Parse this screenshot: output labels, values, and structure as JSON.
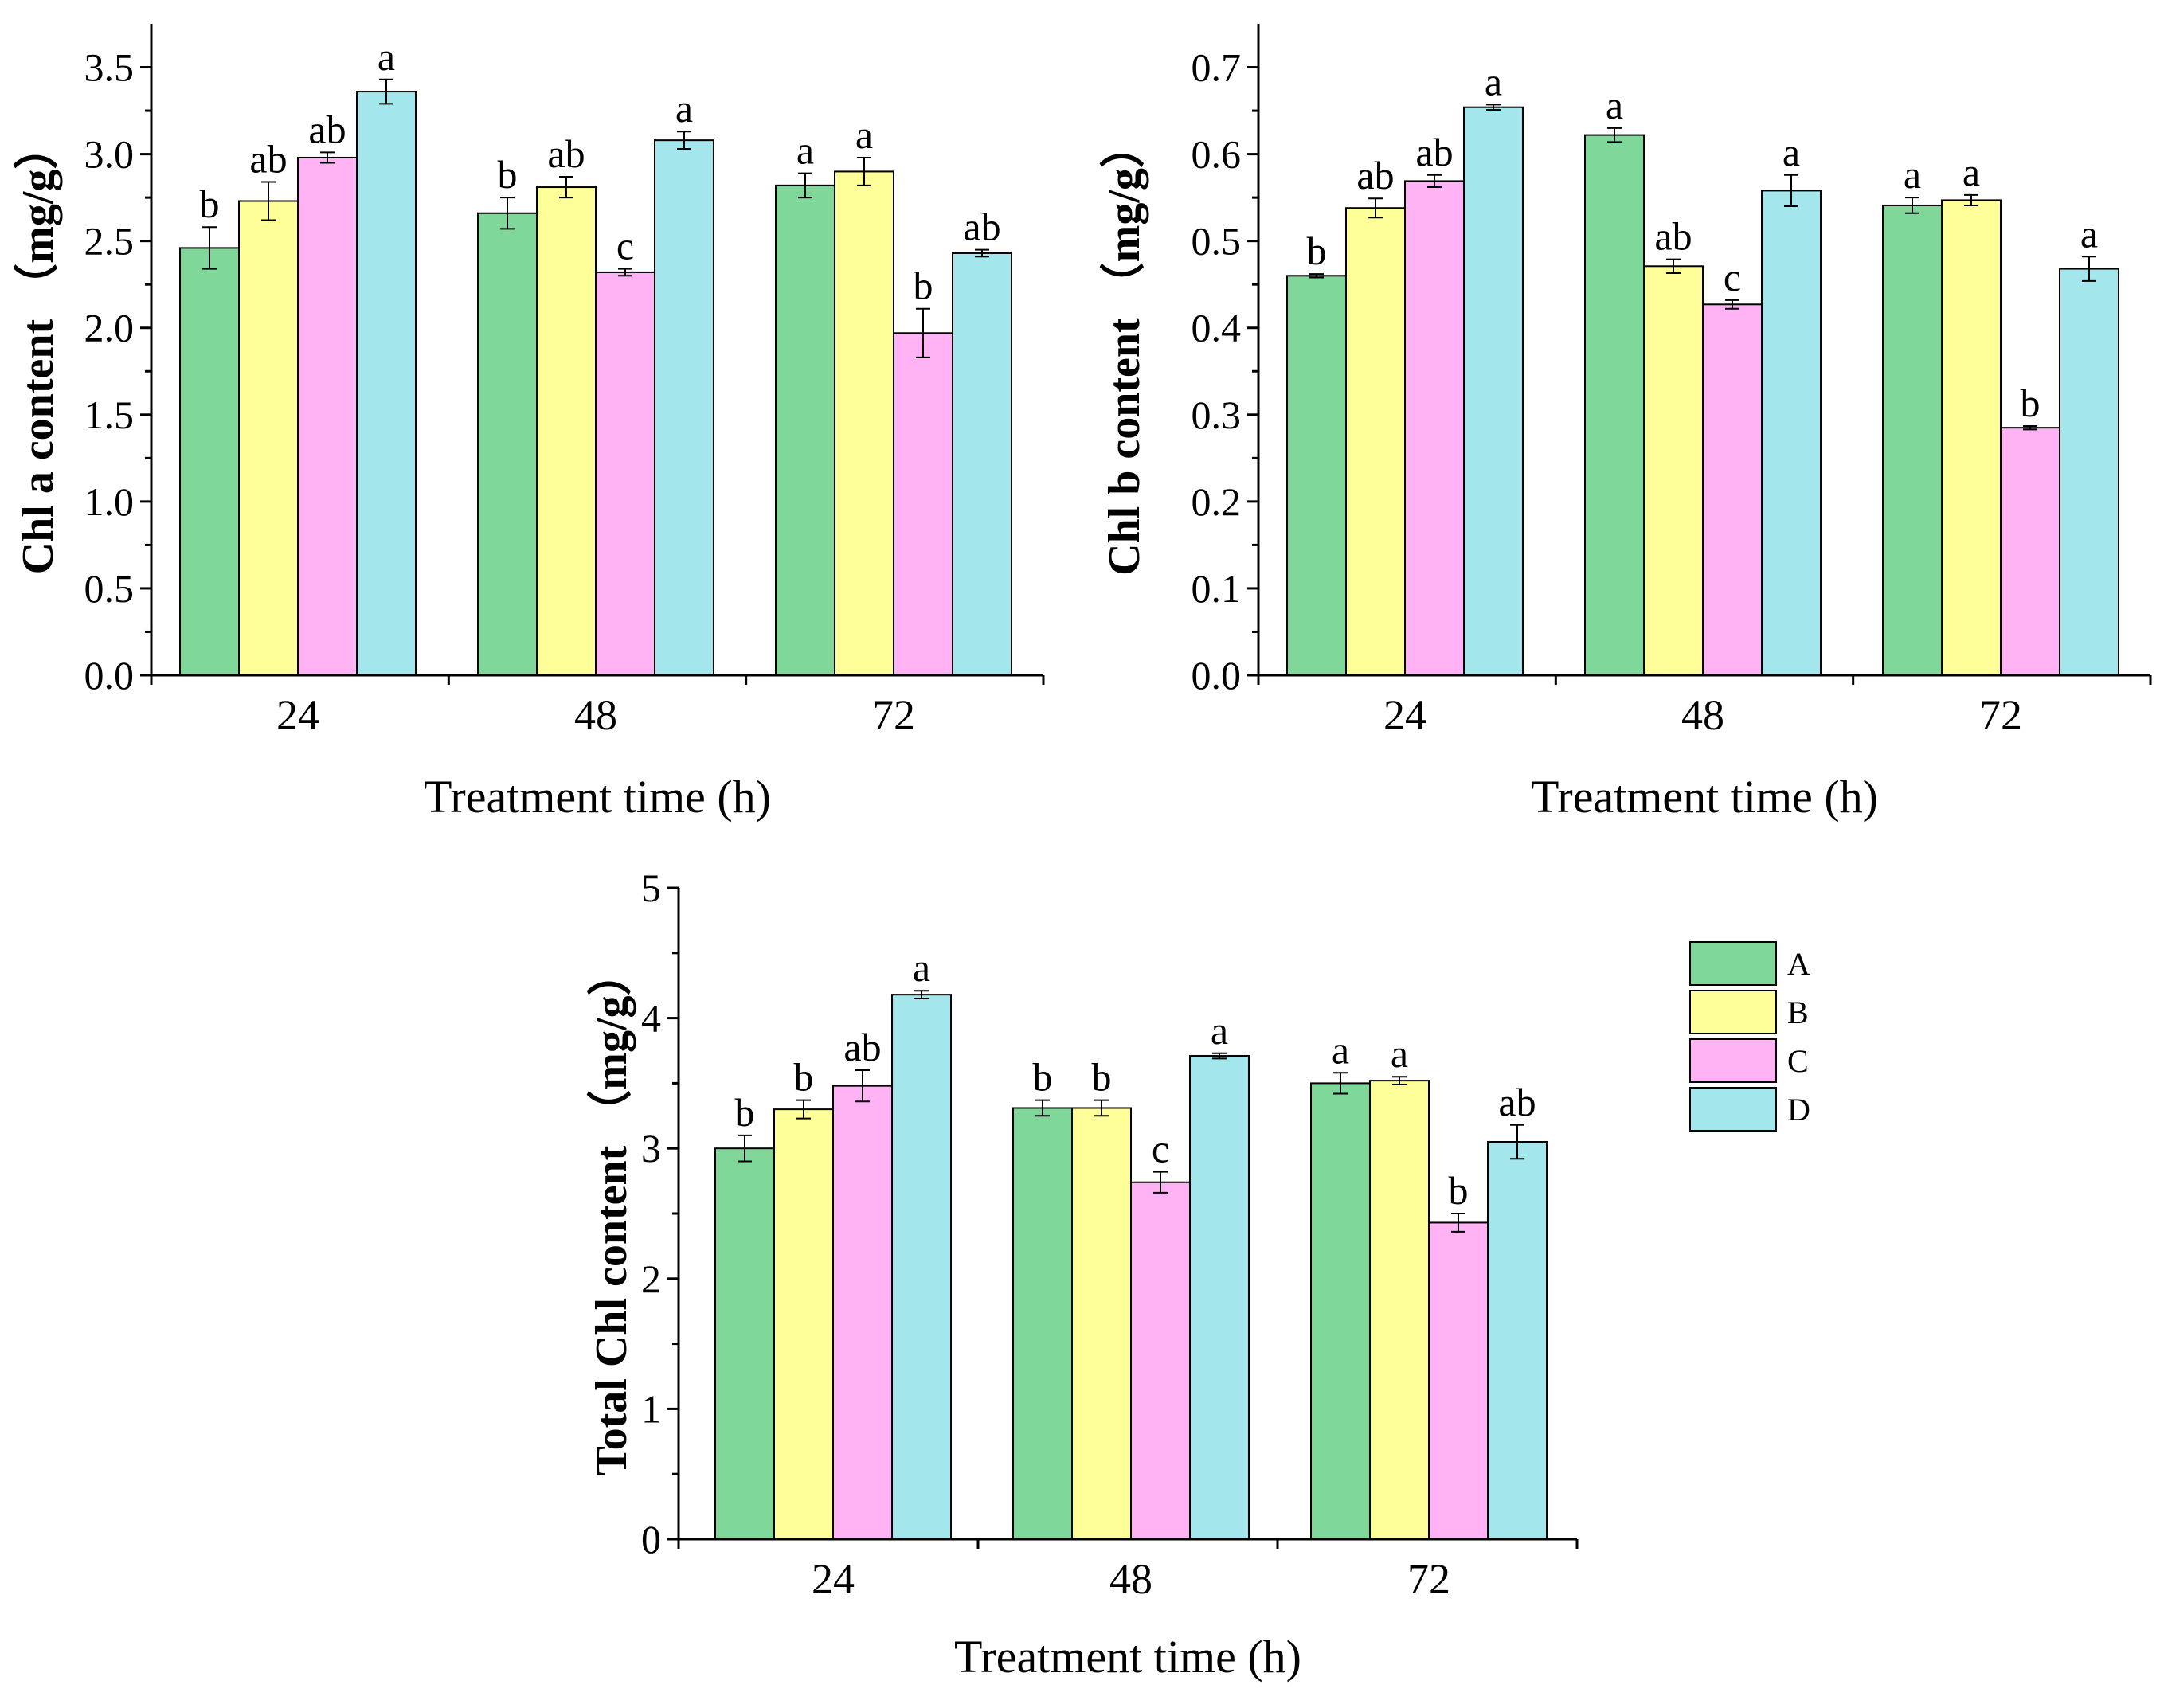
{
  "chart_data": [
    {
      "type": "bar",
      "id": "chl-a",
      "categories": [
        "24",
        "48",
        "72"
      ],
      "series": [
        {
          "name": "A",
          "values": [
            2.46,
            2.66,
            2.82
          ],
          "errors": [
            0.12,
            0.09,
            0.07
          ],
          "labels": [
            "b",
            "b",
            "a"
          ]
        },
        {
          "name": "B",
          "values": [
            2.73,
            2.81,
            2.9
          ],
          "errors": [
            0.11,
            0.06,
            0.08
          ],
          "labels": [
            "ab",
            "ab",
            "a"
          ]
        },
        {
          "name": "C",
          "values": [
            2.98,
            2.32,
            1.97
          ],
          "errors": [
            0.03,
            0.02,
            0.14
          ],
          "labels": [
            "ab",
            "c",
            "b"
          ]
        },
        {
          "name": "D",
          "values": [
            3.36,
            3.08,
            2.43
          ],
          "errors": [
            0.07,
            0.05,
            0.02
          ],
          "labels": [
            "a",
            "a",
            "ab"
          ]
        }
      ],
      "xlabel": "Treatment time (h)",
      "ylabel": "Chl a content （mg/g）",
      "ylim": [
        0,
        3.75
      ],
      "yticks": [
        "0.0",
        "0.5",
        "1.0",
        "1.5",
        "2.0",
        "2.5",
        "3.0",
        "3.5"
      ]
    },
    {
      "type": "bar",
      "id": "chl-b",
      "categories": [
        "24",
        "48",
        "72"
      ],
      "series": [
        {
          "name": "A",
          "values": [
            0.46,
            0.622,
            0.541
          ],
          "errors": [
            0.002,
            0.008,
            0.009
          ],
          "labels": [
            "b",
            "a",
            "a"
          ]
        },
        {
          "name": "B",
          "values": [
            0.538,
            0.471,
            0.547
          ],
          "errors": [
            0.011,
            0.008,
            0.006
          ],
          "labels": [
            "ab",
            "ab",
            "a"
          ]
        },
        {
          "name": "C",
          "values": [
            0.569,
            0.427,
            0.285
          ],
          "errors": [
            0.007,
            0.005,
            0.002
          ],
          "labels": [
            "ab",
            "c",
            "b"
          ]
        },
        {
          "name": "D",
          "values": [
            0.654,
            0.558,
            0.468
          ],
          "errors": [
            0.003,
            0.018,
            0.014
          ],
          "labels": [
            "a",
            "a",
            "a"
          ]
        }
      ],
      "xlabel": "Treatment time (h)",
      "ylabel": "Chl b content （mg/g）",
      "ylim": [
        0,
        0.75
      ],
      "yticks": [
        "0.0",
        "0.1",
        "0.2",
        "0.3",
        "0.4",
        "0.5",
        "0.6",
        "0.7"
      ]
    },
    {
      "type": "bar",
      "id": "total-chl",
      "categories": [
        "24",
        "48",
        "72"
      ],
      "series": [
        {
          "name": "A",
          "values": [
            3.0,
            3.31,
            3.5
          ],
          "errors": [
            0.1,
            0.06,
            0.08
          ],
          "labels": [
            "b",
            "b",
            "a"
          ]
        },
        {
          "name": "B",
          "values": [
            3.3,
            3.31,
            3.52
          ],
          "errors": [
            0.07,
            0.06,
            0.03
          ],
          "labels": [
            "b",
            "b",
            "a"
          ]
        },
        {
          "name": "C",
          "values": [
            3.48,
            2.74,
            2.43
          ],
          "errors": [
            0.12,
            0.08,
            0.07
          ],
          "labels": [
            "ab",
            "c",
            "b"
          ]
        },
        {
          "name": "D",
          "values": [
            4.18,
            3.71,
            3.05
          ],
          "errors": [
            0.03,
            0.02,
            0.13
          ],
          "labels": [
            "a",
            "a",
            "ab"
          ]
        }
      ],
      "xlabel": "Treatment time (h)",
      "ylabel": "Total Chl content （mg/g）",
      "ylim": [
        0,
        5
      ],
      "yticks": [
        "0",
        "1",
        "2",
        "3",
        "4",
        "5"
      ]
    }
  ],
  "legend": {
    "position": "right",
    "items": [
      {
        "name": "A",
        "color": "#7fd899"
      },
      {
        "name": "B",
        "color": "#ffff99"
      },
      {
        "name": "C",
        "color": "#ffb3f5"
      },
      {
        "name": "D",
        "color": "#a3e6ec"
      }
    ]
  }
}
